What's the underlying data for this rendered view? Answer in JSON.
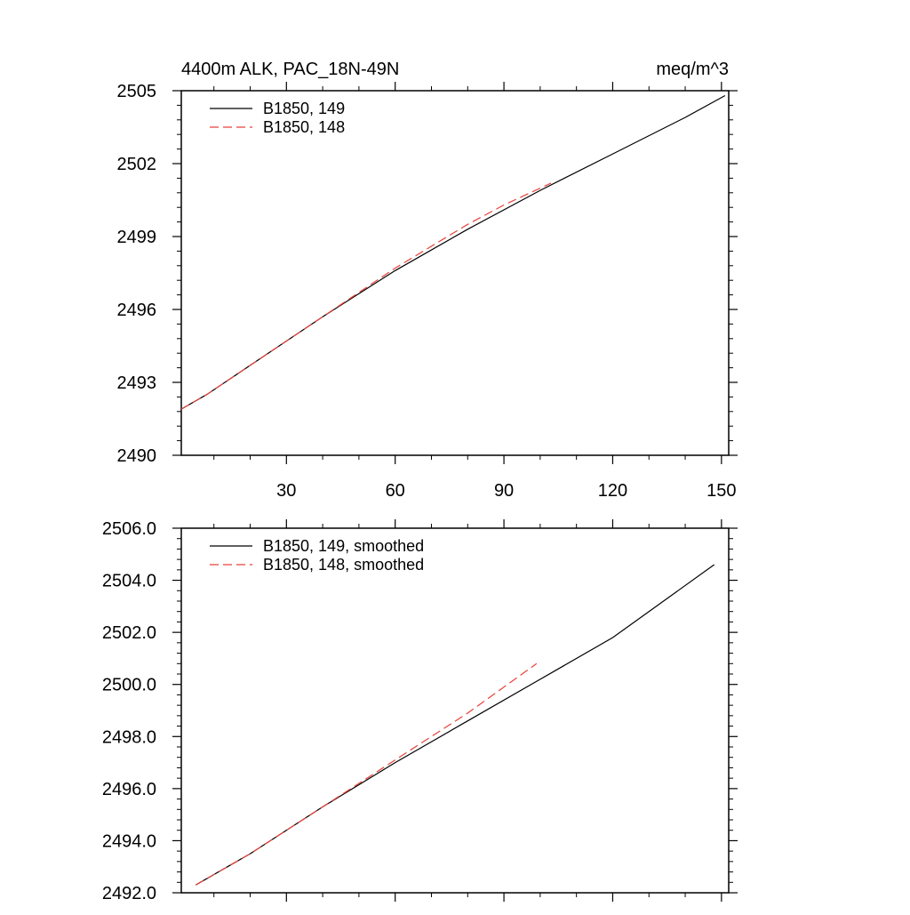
{
  "chart_data": [
    {
      "type": "line",
      "title": "4400m ALK, PAC_18N-49N",
      "units": "meq/m^3",
      "xlabel": "",
      "ylabel": "",
      "xlim": [
        1,
        152
      ],
      "ylim": [
        2490,
        2505
      ],
      "xticks": [
        30,
        60,
        90,
        120,
        150
      ],
      "xtick_labels": [
        "30",
        "60",
        "90",
        "120",
        "150"
      ],
      "yticks": [
        2490,
        2493,
        2496,
        2499,
        2502,
        2505
      ],
      "ytick_labels": [
        "2490",
        "2493",
        "2496",
        "2499",
        "2502",
        "2505"
      ],
      "legend_placement": "top-left",
      "series": [
        {
          "name": "B1850, 149",
          "color": "#000000",
          "dash": "solid",
          "x": [
            1,
            8,
            20,
            40,
            60,
            80,
            100,
            120,
            140,
            151
          ],
          "y": [
            2491.9,
            2492.5,
            2493.7,
            2495.7,
            2497.6,
            2499.3,
            2500.9,
            2502.4,
            2503.9,
            2504.8
          ]
        },
        {
          "name": "B1850, 148",
          "color": "#e8413a",
          "dash": "dashed",
          "x": [
            1,
            8,
            20,
            40,
            60,
            80,
            90,
            103
          ],
          "y": [
            2491.9,
            2492.5,
            2493.7,
            2495.7,
            2497.7,
            2499.5,
            2500.3,
            2501.2
          ]
        }
      ]
    },
    {
      "type": "line",
      "title": "",
      "xlabel": "",
      "ylabel": "",
      "xlim": [
        1,
        152
      ],
      "ylim": [
        2492.0,
        2506.0
      ],
      "xticks": [
        30,
        60,
        90,
        120,
        150
      ],
      "xtick_labels": [],
      "yticks": [
        2492.0,
        2494.0,
        2496.0,
        2498.0,
        2500.0,
        2502.0,
        2504.0,
        2506.0
      ],
      "ytick_labels": [
        "2492.0",
        "2494.0",
        "2496.0",
        "2498.0",
        "2500.0",
        "2502.0",
        "2504.0",
        "2506.0"
      ],
      "legend_placement": "top-left",
      "series": [
        {
          "name": "B1850, 149, smoothed",
          "color": "#000000",
          "dash": "solid",
          "x": [
            5,
            20,
            40,
            60,
            80,
            100,
            120,
            148
          ],
          "y": [
            2492.3,
            2493.5,
            2495.3,
            2497.0,
            2498.6,
            2500.2,
            2501.8,
            2504.6
          ]
        },
        {
          "name": "B1850, 148, smoothed",
          "color": "#e8413a",
          "dash": "dashed",
          "x": [
            5,
            20,
            40,
            60,
            80,
            90,
            99
          ],
          "y": [
            2492.3,
            2493.5,
            2495.3,
            2497.1,
            2498.9,
            2499.9,
            2500.8
          ]
        }
      ]
    }
  ]
}
